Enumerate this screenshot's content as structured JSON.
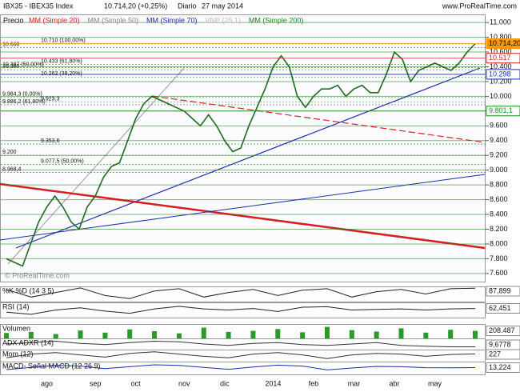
{
  "header": {
    "source": "www.ProRealTime.com",
    "watermark": "© ProRealTime.com",
    "items": [
      "IBX35 - IBEX35 Index",
      "10.714,20 (+0,25%)",
      "Diario",
      "27 may 2014"
    ]
  },
  "chart_data": [
    {
      "type": "line",
      "title": "Precio",
      "color": "#1f6b1f",
      "legend": [
        {
          "name": "MM (Simple 20)",
          "color": "#d62020"
        },
        {
          "name": "MM (Simple 50)",
          "color": "#888888"
        },
        {
          "name": "MM (Simple 70)",
          "color": "#1a2fb0"
        },
        {
          "name": "VNP (25,1)",
          "color": "#b8b8c8"
        },
        {
          "name": "MM (Simple 200)",
          "color": "#1a8c1a"
        }
      ],
      "categories": [
        null,
        null,
        null,
        null,
        null,
        "ago",
        null,
        null,
        null,
        null,
        null,
        "sep",
        null,
        null,
        null,
        null,
        "oct",
        null,
        null,
        null,
        null,
        null,
        "nov",
        null,
        null,
        null,
        null,
        "dic",
        null,
        null,
        null,
        null,
        null,
        "2014",
        null,
        null,
        null,
        null,
        "feb",
        null,
        null,
        null,
        null,
        "mar",
        null,
        null,
        null,
        null,
        "abr",
        null,
        null,
        null,
        null,
        "may",
        null,
        null,
        null,
        null,
        null
      ],
      "values": [
        7800,
        7750,
        7700,
        8000,
        8300,
        8500,
        8650,
        8500,
        8300,
        8200,
        8500,
        8650,
        8900,
        9050,
        9100,
        9400,
        9700,
        9900,
        10000,
        9950,
        9900,
        9850,
        9800,
        9700,
        9600,
        9750,
        9600,
        9400,
        9250,
        9300,
        9600,
        9850,
        10100,
        10400,
        10550,
        10400,
        10000,
        9850,
        10000,
        10100,
        10100,
        10150,
        10000,
        10100,
        10150,
        10050,
        10050,
        10300,
        10600,
        10500,
        10200,
        10350,
        10400,
        10450,
        10400,
        10350,
        10450,
        10600,
        10714.2
      ],
      "ylim": [
        7490,
        11110
      ],
      "yticks": [
        {
          "value": 7600,
          "label": "7.600"
        },
        {
          "value": 7800,
          "label": "7.800"
        },
        {
          "value": 8000,
          "label": "8.000"
        },
        {
          "value": 8200,
          "label": "8.200"
        },
        {
          "value": 8400,
          "label": "8.400"
        },
        {
          "value": 8600,
          "label": "8.600"
        },
        {
          "value": 8800,
          "label": "8.800"
        },
        {
          "value": 9000,
          "label": "9.000"
        },
        {
          "value": 9200,
          "label": "9.200"
        },
        {
          "value": 9400,
          "label": "9.400"
        },
        {
          "value": 9600,
          "label": "9.600"
        },
        {
          "value": 9800,
          "label": "9.800"
        },
        {
          "value": 10000,
          "label": "10.000"
        },
        {
          "value": 10200,
          "label": "10.200"
        },
        {
          "value": 10400,
          "label": "10.400"
        },
        {
          "value": 10600,
          "label": "10.600"
        },
        {
          "value": 10800,
          "label": "10.800"
        },
        {
          "value": 11000,
          "label": "11.000"
        }
      ],
      "grid": true,
      "levels": [
        {
          "value": 10660,
          "label": "10.660"
        },
        {
          "value": 10710,
          "label": "10.710 (100,00%)"
        },
        {
          "value": 10360,
          "label": "10.360"
        },
        {
          "value": 10433,
          "label": "10.433 (61,80%)"
        },
        {
          "value": 10387,
          "label": "10.387 (50,00%)"
        },
        {
          "value": 10262,
          "label": "10.262 (38,20%)"
        },
        {
          "value": 9984.3,
          "label": "9.984,3 (0,00%)"
        },
        {
          "value": 9923.3,
          "label": "9.923,3"
        },
        {
          "value": 9886.2,
          "label": "9.886,2 (61,80%)"
        },
        {
          "value": 9353.6,
          "label": "9.353,6"
        },
        {
          "value": 9200,
          "label": "9.200"
        },
        {
          "value": 9077.5,
          "label": "9.077,5 (50,00%)"
        },
        {
          "value": 8968.4,
          "label": "8.968,4"
        }
      ],
      "markers": [
        {
          "value": 10714.2,
          "label": "10.714,20",
          "color": "#ff9900"
        },
        {
          "value": 10517,
          "label": "10.517",
          "color": "#d62020"
        },
        {
          "value": 10298,
          "label": "10.298",
          "color": "#1a2fb0"
        },
        {
          "value": 9801.1,
          "label": "9.801,1",
          "color": "#1a8c1a"
        }
      ]
    },
    {
      "type": "line",
      "title": "%K %D (14 3 5)",
      "color": "#222222",
      "ylim": [
        0,
        100
      ],
      "values": [
        80,
        30,
        60,
        90,
        40,
        20,
        70,
        85,
        30,
        60,
        80,
        40,
        75,
        85,
        30,
        65,
        80,
        50,
        85,
        88
      ],
      "last_value": {
        "value": 87.899,
        "label": "87,899"
      }
    },
    {
      "type": "line",
      "title": "RSI (14)",
      "color": "#222222",
      "ylim": [
        20,
        90
      ],
      "values": [
        45,
        35,
        55,
        65,
        50,
        40,
        60,
        72,
        60,
        55,
        62,
        48,
        68,
        70,
        55,
        58,
        60,
        55,
        60,
        62
      ],
      "last_value": {
        "value": 62.451,
        "label": "62,451"
      }
    },
    {
      "type": "bar",
      "title": "Volumen",
      "color": "#2a9a2a",
      "ylim": [
        0,
        400000
      ],
      "values": [
        150000,
        180000,
        120000,
        220000,
        160000,
        250000,
        200000,
        140000,
        300000,
        180000,
        210000,
        260000,
        170000,
        320000,
        230000,
        190000,
        280000,
        160000,
        240000,
        208487
      ],
      "last_value": {
        "value": 208487,
        "label": "208.487"
      }
    },
    {
      "type": "line",
      "title": "ADX ADXR (14)",
      "color": "#333333",
      "ylim": [
        0,
        40
      ],
      "values": [
        20,
        25,
        30,
        22,
        18,
        25,
        30,
        28,
        20,
        15,
        22,
        25,
        18,
        15,
        20,
        25,
        15,
        12,
        10,
        10
      ],
      "last_value": {
        "value": 9.6778,
        "label": "9,6778"
      }
    },
    {
      "type": "line",
      "title": "Mom (12)",
      "color": "#333333",
      "ylim": [
        -800,
        800
      ],
      "values": [
        -300,
        200,
        400,
        100,
        -200,
        300,
        500,
        200,
        -100,
        -300,
        200,
        400,
        100,
        -400,
        100,
        300,
        200,
        -100,
        150,
        227
      ],
      "last_value": {
        "value": 227,
        "label": "227"
      }
    },
    {
      "type": "line",
      "title": "MACD- Señal MACD (12 26 9)",
      "color": "#1a2fb0",
      "ylim": [
        -200,
        200
      ],
      "values": [
        -50,
        20,
        80,
        60,
        -20,
        40,
        100,
        80,
        20,
        -40,
        30,
        90,
        60,
        -60,
        0,
        50,
        40,
        10,
        5,
        13
      ],
      "last_value": {
        "value": 13.224,
        "label": "13,224"
      }
    }
  ]
}
